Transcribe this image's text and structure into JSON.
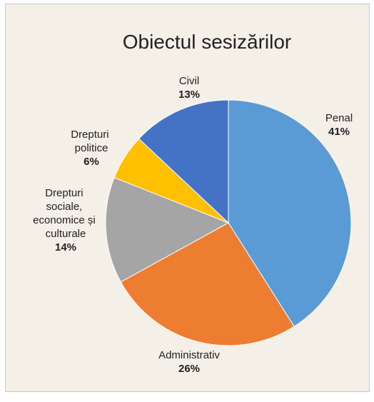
{
  "chart_data": {
    "type": "pie",
    "title": "Obiectul sesizărilor",
    "categories": [
      "Penal",
      "Administrativ",
      "Drepturi sociale, economice și culturale",
      "Drepturi politice",
      "Civil"
    ],
    "values": [
      41,
      26,
      14,
      6,
      13
    ],
    "value_labels": [
      "41%",
      "26%",
      "14%",
      "6%",
      "13%"
    ],
    "colors": [
      "#5b9bd5",
      "#ed7d31",
      "#a5a5a5",
      "#ffc000",
      "#4472c4"
    ]
  }
}
